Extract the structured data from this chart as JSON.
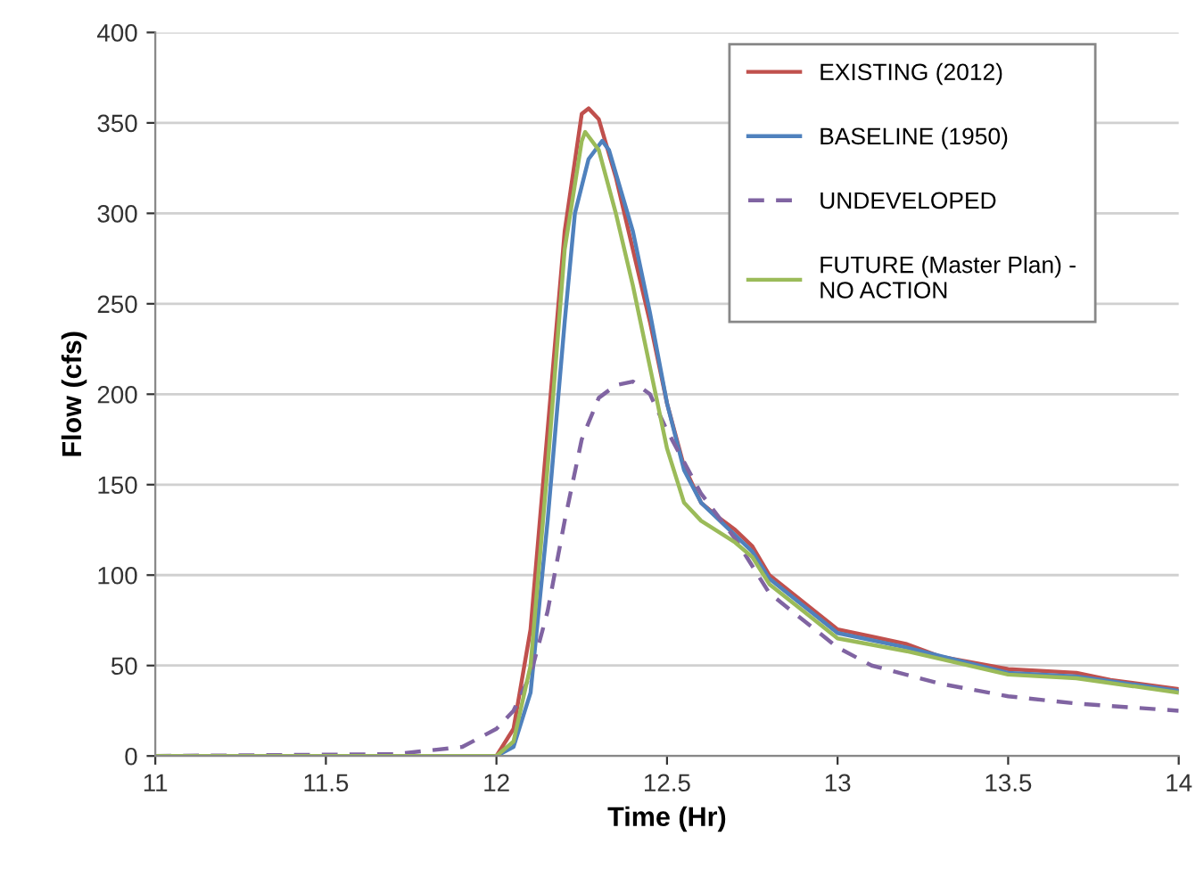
{
  "chart_data": {
    "type": "line",
    "xlabel": "Time (Hr)",
    "ylabel": "Flow (cfs)",
    "xlim": [
      11,
      14
    ],
    "xticks": [
      11,
      11.5,
      12,
      12.5,
      13,
      13.5,
      14
    ],
    "ylim": [
      0,
      400
    ],
    "yticks": [
      0,
      50,
      100,
      150,
      200,
      250,
      300,
      350,
      400
    ],
    "grid": "y",
    "legend": "top right",
    "marker": "none",
    "series": [
      {
        "name": "EXISTING (2012)",
        "color": "#c0504d",
        "line_style": "solid",
        "x": [
          11,
          12.0,
          12.05,
          12.1,
          12.15,
          12.2,
          12.25,
          12.27,
          12.3,
          12.35,
          12.4,
          12.45,
          12.5,
          12.55,
          12.6,
          12.65,
          12.7,
          12.75,
          12.8,
          12.9,
          13.0,
          13.1,
          13.2,
          13.3,
          13.5,
          13.7,
          13.8,
          14
        ],
        "values": [
          0,
          0,
          15,
          70,
          180,
          290,
          355,
          358,
          352,
          320,
          280,
          240,
          195,
          160,
          140,
          132,
          125,
          116,
          100,
          85,
          70,
          66,
          62,
          55,
          48,
          46,
          42,
          37
        ]
      },
      {
        "name": "BASELINE (1950)",
        "color": "#4f81bd",
        "line_style": "solid",
        "x": [
          11,
          12.0,
          12.05,
          12.1,
          12.15,
          12.2,
          12.23,
          12.27,
          12.31,
          12.33,
          12.4,
          12.45,
          12.5,
          12.55,
          12.6,
          12.7,
          12.75,
          12.8,
          12.9,
          13.0,
          13.2,
          13.5,
          13.7,
          14
        ],
        "values": [
          0,
          0,
          5,
          35,
          130,
          240,
          300,
          330,
          340,
          335,
          290,
          245,
          195,
          158,
          140,
          122,
          113,
          98,
          83,
          68,
          60,
          46,
          44,
          36
        ]
      },
      {
        "name": "UNDEVELOPED",
        "color": "#8064a2",
        "line_style": "dashed",
        "x": [
          11,
          11.7,
          11.9,
          12.0,
          12.05,
          12.1,
          12.15,
          12.2,
          12.25,
          12.3,
          12.35,
          12.4,
          12.45,
          12.5,
          12.6,
          12.7,
          12.8,
          12.9,
          13.0,
          13.1,
          13.3,
          13.5,
          13.7,
          14
        ],
        "values": [
          0,
          1,
          5,
          15,
          25,
          45,
          80,
          130,
          175,
          198,
          205,
          207,
          200,
          180,
          145,
          120,
          90,
          75,
          60,
          50,
          40,
          33,
          29,
          25
        ]
      },
      {
        "name": "FUTURE (Master Plan) -\nNO ACTION",
        "color": "#9bbb59",
        "line_style": "solid",
        "x": [
          11,
          12.0,
          12.05,
          12.1,
          12.15,
          12.2,
          12.25,
          12.26,
          12.3,
          12.35,
          12.4,
          12.45,
          12.5,
          12.55,
          12.6,
          12.7,
          12.75,
          12.8,
          12.9,
          13.0,
          13.2,
          13.5,
          13.7,
          14
        ],
        "values": [
          0,
          0,
          8,
          50,
          160,
          280,
          340,
          345,
          335,
          300,
          260,
          215,
          170,
          140,
          130,
          118,
          110,
          95,
          80,
          65,
          58,
          45,
          43,
          35
        ]
      }
    ]
  }
}
